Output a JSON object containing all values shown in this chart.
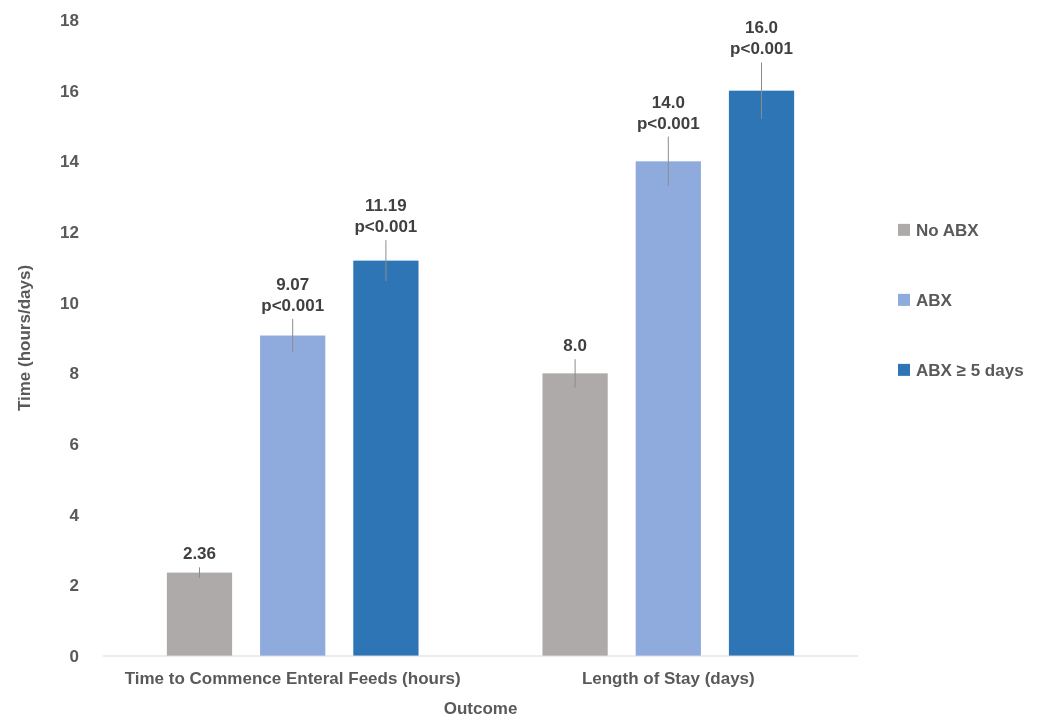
{
  "chart_data": {
    "type": "bar",
    "xlabel": "Outcome",
    "ylabel": "Time (hours/days)",
    "categories": [
      "Time to Commence Enteral Feeds (hours)",
      "Length of Stay (days)"
    ],
    "series": [
      {
        "name": "No ABX",
        "color": "#aeaaaa",
        "values": [
          2.36,
          8.0
        ],
        "errors": [
          0.15,
          0.4
        ],
        "value_labels": [
          "2.36",
          "8.0"
        ]
      },
      {
        "name": "ABX",
        "color": "#8faadc",
        "values": [
          9.07,
          14.0
        ],
        "errors": [
          0.47,
          0.7
        ],
        "value_labels": [
          "9.07\np<0.001",
          "14.0\np<0.001"
        ]
      },
      {
        "name": "ABX ≥ 5 days",
        "color": "#2e75b6",
        "values": [
          11.19,
          16.0
        ],
        "errors": [
          0.58,
          0.8
        ],
        "value_labels": [
          "11.19\np<0.001",
          "16.0\np<0.001"
        ]
      }
    ],
    "ylim": [
      0,
      18
    ],
    "yticks": [
      0,
      2,
      4,
      6,
      8,
      10,
      12,
      14,
      16,
      18
    ],
    "grid": false,
    "legend": "right"
  }
}
